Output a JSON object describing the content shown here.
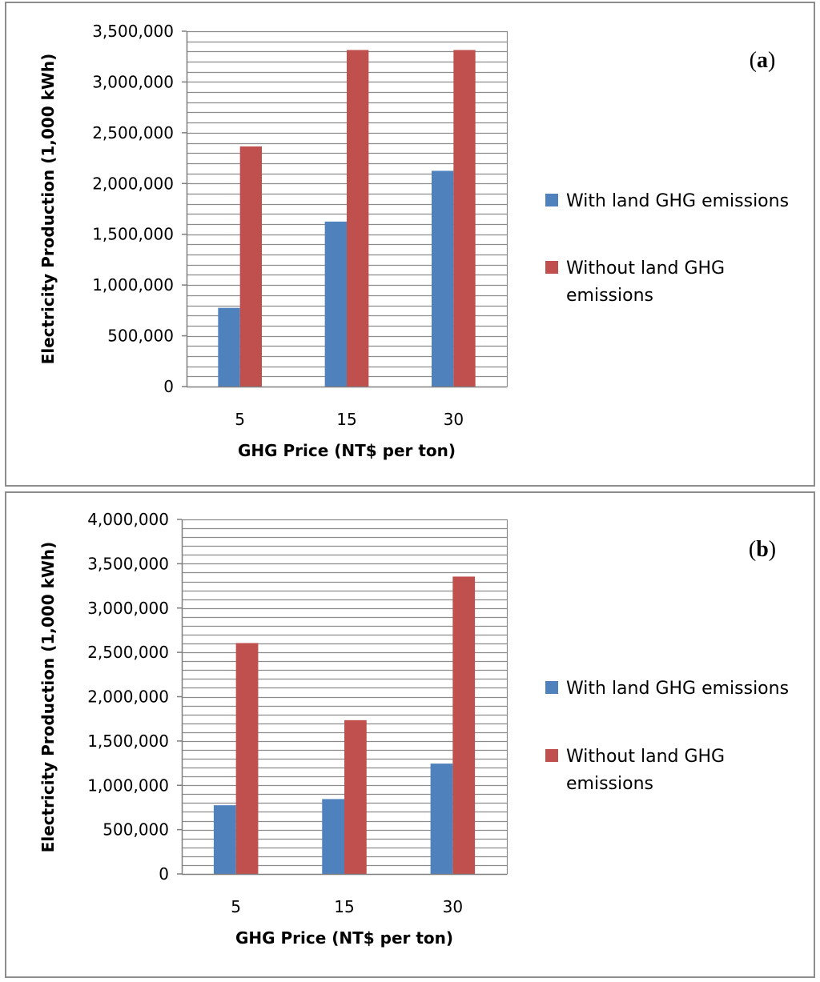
{
  "chart_data": [
    {
      "type": "bar",
      "panel_label": "a",
      "categories": [
        "5",
        "15",
        "30"
      ],
      "series": [
        {
          "name": "With land GHG emissions",
          "values": [
            775000,
            1625000,
            2125000
          ],
          "color": "#4f81bd"
        },
        {
          "name": "Without land GHG emissions",
          "values": [
            2365000,
            3315000,
            3315000
          ],
          "color": "#c0504d"
        }
      ],
      "ylim": [
        0,
        3500000
      ],
      "major_step": 500000,
      "minor_step": 100000,
      "yticks": [
        "0",
        "500,000",
        "1,000,000",
        "1,500,000",
        "2,000,000",
        "2,500,000",
        "3,000,000",
        "3,500,000"
      ],
      "xlabel": "GHG Price (NT$ per ton)",
      "ylabel": "Electricity Production (1,000 kWh)",
      "legend": {
        "line1": [
          "With land GHG emissions"
        ],
        "line2": [
          "Without land GHG",
          "emissions"
        ]
      },
      "legend_position": "right",
      "grid": true
    },
    {
      "type": "bar",
      "panel_label": "b",
      "categories": [
        "5",
        "15",
        "30"
      ],
      "series": [
        {
          "name": "With land GHG emissions",
          "values": [
            775000,
            845000,
            1245000
          ],
          "color": "#4f81bd"
        },
        {
          "name": "Without land GHG emissions",
          "values": [
            2605000,
            1735000,
            3355000
          ],
          "color": "#c0504d"
        }
      ],
      "ylim": [
        0,
        4000000
      ],
      "major_step": 500000,
      "minor_step": 100000,
      "yticks": [
        "0",
        "500,000",
        "1,000,000",
        "1,500,000",
        "2,000,000",
        "2,500,000",
        "3,000,000",
        "3,500,000",
        "4,000,000"
      ],
      "xlabel": "GHG Price (NT$ per ton)",
      "ylabel": "Electricity Production (1,000 kWh)",
      "legend": {
        "line1": [
          "With land GHG emissions"
        ],
        "line2": [
          "Without land GHG",
          "emissions"
        ]
      },
      "legend_position": "right",
      "grid": true
    }
  ]
}
